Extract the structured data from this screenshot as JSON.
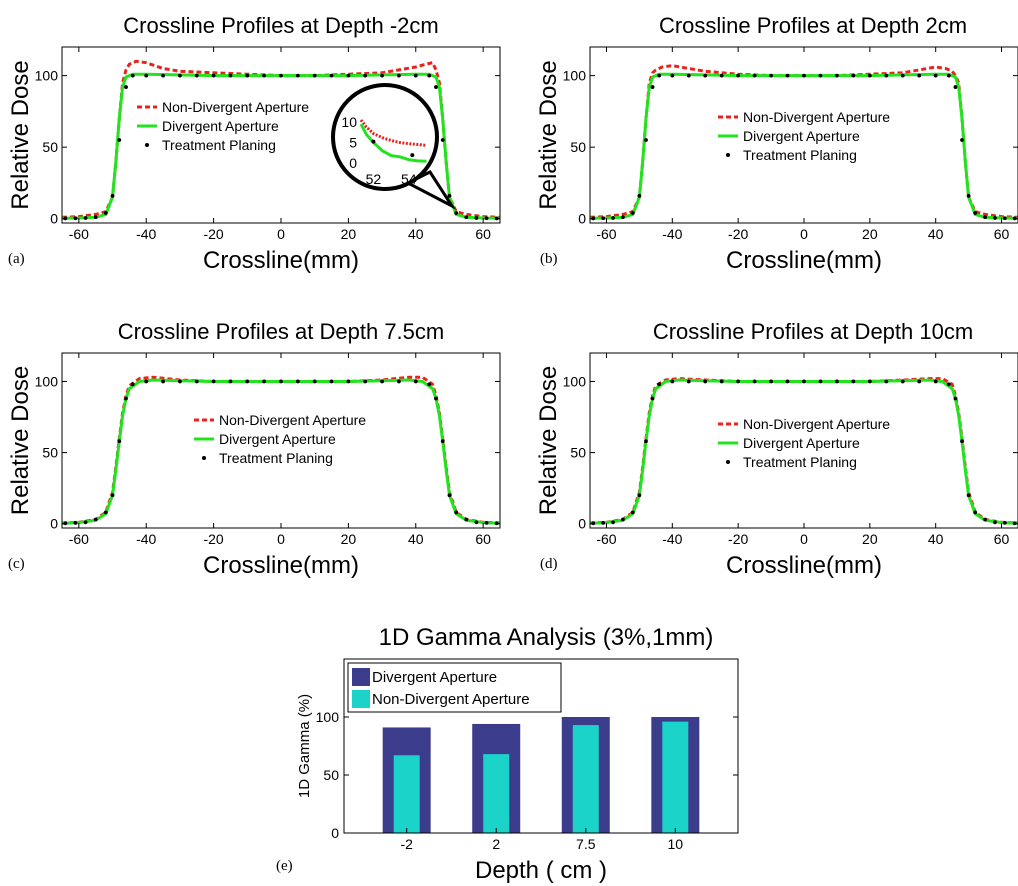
{
  "figure": {
    "panel_labels": [
      "(a)",
      "(b)",
      "(c)",
      "(d)",
      "(e)"
    ]
  },
  "colors": {
    "non_divergent": "#e8231e",
    "divergent": "#22e41e",
    "treatment": "#000000",
    "bar_divergent": "#3c3c8c",
    "bar_non_divergent": "#1cd3c9"
  },
  "chart_data": [
    {
      "type": "line",
      "panel": "(a)",
      "title": "Crossline Profiles at Depth -2cm",
      "xlabel": "Crossline(mm)",
      "ylabel": "Relative Dose",
      "xlim": [
        -65,
        65
      ],
      "ylim": [
        -3,
        120
      ],
      "xticks": [
        -60,
        -40,
        -20,
        0,
        20,
        40,
        60
      ],
      "yticks": [
        0,
        50,
        100
      ],
      "legend_position": "upper-left",
      "inset": {
        "xticks": [
          52,
          54
        ],
        "yticks": [
          0,
          5,
          10
        ],
        "xlim": [
          51.3,
          55.2
        ],
        "ylim": [
          -1,
          11
        ],
        "non_divergent": {
          "x": [
            51.3,
            51.6,
            52,
            52.5,
            53,
            53.5,
            54,
            54.5,
            55
          ],
          "y": [
            10.5,
            8.8,
            7.2,
            6.2,
            5.5,
            5.0,
            4.7,
            4.5,
            4.3
          ]
        },
        "divergent": {
          "x": [
            51.3,
            51.6,
            52,
            52.5,
            53,
            53.5,
            54,
            54.5,
            55
          ],
          "y": [
            9.5,
            7.0,
            5.0,
            3.0,
            1.8,
            1.5,
            0.8,
            0.5,
            0.4
          ]
        },
        "treatment": {
          "x": [
            52,
            54.2
          ],
          "y": [
            5.2,
            1.9
          ]
        }
      },
      "series": [
        {
          "name": "Non-Divergent Aperture",
          "style": "dashed",
          "x": [
            -65,
            -60,
            -55,
            -52,
            -50,
            -49,
            -48,
            -47,
            -46,
            -45,
            -43,
            -40,
            -35,
            -30,
            -20,
            -10,
            0,
            10,
            20,
            30,
            35,
            40,
            43,
            45,
            46,
            47,
            48,
            49,
            50,
            52,
            55,
            60,
            65
          ],
          "y": [
            1,
            1.5,
            3,
            5,
            15,
            40,
            70,
            95,
            104,
            108,
            110,
            109,
            105,
            103,
            102,
            101,
            100,
            100,
            101,
            102,
            104,
            106,
            108,
            109,
            104,
            95,
            70,
            40,
            15,
            5,
            3,
            1.5,
            1
          ]
        },
        {
          "name": "Divergent Aperture",
          "style": "solid",
          "x": [
            -65,
            -60,
            -55,
            -52,
            -50,
            -49,
            -48,
            -47,
            -46,
            -44,
            -40,
            -30,
            -20,
            -10,
            0,
            10,
            20,
            30,
            40,
            44,
            46,
            47,
            48,
            49,
            50,
            52,
            55,
            60,
            65
          ],
          "y": [
            0.3,
            0.5,
            1,
            3,
            15,
            40,
            70,
            92,
            99,
            101,
            101,
            100.5,
            100,
            100,
            100,
            100,
            100,
            100.5,
            101,
            101,
            99,
            92,
            70,
            40,
            15,
            3,
            1,
            0.5,
            0.3
          ]
        },
        {
          "name": "Treatment Planing",
          "style": "dots",
          "x": [
            -64,
            -61,
            -58,
            -55,
            -52,
            -50,
            -48,
            -46,
            -44,
            -40,
            -35,
            -30,
            -25,
            -20,
            -15,
            -10,
            -5,
            0,
            5,
            10,
            15,
            20,
            25,
            30,
            35,
            40,
            44,
            46,
            48,
            50,
            52,
            55,
            58,
            61,
            64
          ],
          "y": [
            0.2,
            0.3,
            0.5,
            1,
            4,
            16,
            55,
            92,
            100,
            100,
            100,
            100,
            100,
            100,
            100,
            100,
            100,
            100,
            100,
            100,
            100,
            100,
            100,
            100,
            100,
            100,
            100,
            92,
            55,
            16,
            4,
            1,
            0.5,
            0.3,
            0.2
          ]
        }
      ]
    },
    {
      "type": "line",
      "panel": "(b)",
      "title": "Crossline Profiles at Depth 2cm",
      "xlabel": "Crossline(mm)",
      "ylabel": "Relative Dose",
      "xlim": [
        -65,
        65
      ],
      "ylim": [
        -3,
        120
      ],
      "xticks": [
        -60,
        -40,
        -20,
        0,
        20,
        40,
        60
      ],
      "yticks": [
        0,
        50,
        100
      ],
      "legend_position": "center",
      "series": [
        {
          "name": "Non-Divergent Aperture",
          "style": "dashed",
          "x": [
            -65,
            -60,
            -55,
            -52,
            -50,
            -49,
            -48,
            -47,
            -46,
            -45,
            -43,
            -40,
            -35,
            -30,
            -20,
            -10,
            0,
            10,
            20,
            30,
            35,
            40,
            43,
            45,
            46,
            47,
            48,
            49,
            50,
            52,
            55,
            60,
            65
          ],
          "y": [
            1,
            1.5,
            3,
            5,
            15,
            40,
            70,
            95,
            102,
            104,
            106,
            107,
            105,
            103,
            101,
            100,
            100,
            100,
            101,
            102,
            104,
            106,
            105,
            103,
            100,
            95,
            70,
            40,
            15,
            5,
            3,
            1.5,
            1
          ]
        },
        {
          "name": "Divergent Aperture",
          "style": "solid",
          "x": [
            -65,
            -60,
            -55,
            -52,
            -50,
            -49,
            -48,
            -47,
            -46,
            -44,
            -40,
            -30,
            -20,
            -10,
            0,
            10,
            20,
            30,
            40,
            44,
            46,
            47,
            48,
            49,
            50,
            52,
            55,
            60,
            65
          ],
          "y": [
            0.3,
            0.5,
            1,
            3,
            15,
            40,
            70,
            92,
            99,
            101,
            101,
            100.5,
            100,
            100,
            100,
            100,
            100,
            100.5,
            101,
            101,
            99,
            92,
            70,
            40,
            15,
            3,
            1,
            0.5,
            0.3
          ]
        },
        {
          "name": "Treatment Planing",
          "style": "dots",
          "x": [
            -64,
            -61,
            -58,
            -55,
            -52,
            -50,
            -48,
            -46,
            -44,
            -40,
            -35,
            -30,
            -25,
            -20,
            -15,
            -10,
            -5,
            0,
            5,
            10,
            15,
            20,
            25,
            30,
            35,
            40,
            44,
            46,
            48,
            50,
            52,
            55,
            58,
            61,
            64
          ],
          "y": [
            0.2,
            0.3,
            0.5,
            1,
            4,
            16,
            55,
            92,
            100,
            100,
            100,
            100,
            100,
            100,
            100,
            100,
            100,
            100,
            100,
            100,
            100,
            100,
            100,
            100,
            100,
            100,
            100,
            92,
            55,
            16,
            4,
            1,
            0.5,
            0.3,
            0.2
          ]
        }
      ]
    },
    {
      "type": "line",
      "panel": "(c)",
      "title": "Crossline Profiles at Depth 7.5cm",
      "xlabel": "Crossline(mm)",
      "ylabel": "Relative Dose",
      "xlim": [
        -65,
        65
      ],
      "ylim": [
        -3,
        120
      ],
      "xticks": [
        -60,
        -40,
        -20,
        0,
        20,
        40,
        60
      ],
      "yticks": [
        0,
        50,
        100
      ],
      "legend_position": "center",
      "series": [
        {
          "name": "Non-Divergent Aperture",
          "style": "dashed",
          "x": [
            -65,
            -60,
            -55,
            -52,
            -50,
            -49,
            -48,
            -47,
            -46,
            -45,
            -42,
            -38,
            -30,
            -20,
            -10,
            0,
            10,
            20,
            30,
            38,
            42,
            45,
            46,
            47,
            48,
            49,
            50,
            52,
            55,
            60,
            65
          ],
          "y": [
            0.5,
            1,
            3,
            8,
            22,
            40,
            60,
            78,
            90,
            97,
            102,
            103,
            101,
            100,
            100,
            100,
            100,
            100,
            101,
            103,
            103,
            98,
            90,
            78,
            60,
            40,
            22,
            8,
            3,
            1,
            0.5
          ]
        },
        {
          "name": "Divergent Aperture",
          "style": "solid",
          "x": [
            -65,
            -60,
            -55,
            -52,
            -50,
            -49,
            -48,
            -47,
            -46,
            -45,
            -42,
            -38,
            -30,
            -20,
            -10,
            0,
            10,
            20,
            30,
            38,
            42,
            45,
            46,
            47,
            48,
            49,
            50,
            52,
            55,
            60,
            65
          ],
          "y": [
            0.3,
            0.8,
            2.5,
            7,
            20,
            38,
            58,
            76,
            88,
            95,
            100,
            101,
            100.5,
            100,
            100,
            100,
            100,
            100,
            100.5,
            101,
            100,
            95,
            88,
            76,
            58,
            38,
            20,
            7,
            2.5,
            0.8,
            0.3
          ]
        },
        {
          "name": "Treatment Planing",
          "style": "dots",
          "x": [
            -64,
            -61,
            -58,
            -55,
            -52,
            -50,
            -48,
            -46,
            -44,
            -40,
            -35,
            -30,
            -25,
            -20,
            -15,
            -10,
            -5,
            0,
            5,
            10,
            15,
            20,
            25,
            30,
            35,
            40,
            44,
            46,
            48,
            50,
            52,
            55,
            58,
            61,
            64
          ],
          "y": [
            0.3,
            0.6,
            1,
            3,
            8,
            20,
            58,
            88,
            98,
            100,
            100,
            100,
            100,
            100,
            100,
            100,
            100,
            100,
            100,
            100,
            100,
            100,
            100,
            100,
            100,
            100,
            98,
            88,
            58,
            20,
            8,
            3,
            1,
            0.6,
            0.3
          ]
        }
      ]
    },
    {
      "type": "line",
      "panel": "(d)",
      "title": "Crossline Profiles at Depth 10cm",
      "xlabel": "Crossline(mm)",
      "ylabel": "Relative Dose",
      "xlim": [
        -65,
        65
      ],
      "ylim": [
        -3,
        120
      ],
      "xticks": [
        -60,
        -40,
        -20,
        0,
        20,
        40,
        60
      ],
      "yticks": [
        0,
        50,
        100
      ],
      "legend_position": "center",
      "series": [
        {
          "name": "Non-Divergent Aperture",
          "style": "dashed",
          "x": [
            -65,
            -60,
            -55,
            -52,
            -50,
            -49,
            -48,
            -47,
            -46,
            -45,
            -42,
            -38,
            -30,
            -20,
            -10,
            0,
            10,
            20,
            30,
            38,
            42,
            45,
            46,
            47,
            48,
            49,
            50,
            52,
            55,
            60,
            65
          ],
          "y": [
            0.5,
            1,
            3,
            8,
            22,
            40,
            60,
            78,
            90,
            97,
            101,
            102,
            101,
            100,
            100,
            100,
            100,
            100,
            101,
            102,
            102,
            98,
            90,
            78,
            60,
            40,
            22,
            8,
            3,
            1,
            0.5
          ]
        },
        {
          "name": "Divergent Aperture",
          "style": "solid",
          "x": [
            -65,
            -60,
            -55,
            -52,
            -50,
            -49,
            -48,
            -47,
            -46,
            -45,
            -42,
            -38,
            -30,
            -20,
            -10,
            0,
            10,
            20,
            30,
            38,
            42,
            45,
            46,
            47,
            48,
            49,
            50,
            52,
            55,
            60,
            65
          ],
          "y": [
            0.3,
            0.8,
            2.5,
            7,
            20,
            38,
            58,
            76,
            88,
            95,
            100,
            101,
            100.5,
            100,
            100,
            100,
            100,
            100,
            100.5,
            101,
            100,
            95,
            88,
            76,
            58,
            38,
            20,
            7,
            2.5,
            0.8,
            0.3
          ]
        },
        {
          "name": "Treatment Planing",
          "style": "dots",
          "x": [
            -64,
            -61,
            -58,
            -55,
            -52,
            -50,
            -48,
            -46,
            -44,
            -40,
            -35,
            -30,
            -25,
            -20,
            -15,
            -10,
            -5,
            0,
            5,
            10,
            15,
            20,
            25,
            30,
            35,
            40,
            44,
            46,
            48,
            50,
            52,
            55,
            58,
            61,
            64
          ],
          "y": [
            0.3,
            0.6,
            1,
            3,
            8,
            20,
            58,
            88,
            98,
            100,
            100,
            100,
            100,
            100,
            100,
            100,
            100,
            100,
            100,
            100,
            100,
            100,
            100,
            100,
            100,
            100,
            98,
            88,
            58,
            20,
            8,
            3,
            1,
            0.6,
            0.3
          ]
        }
      ]
    },
    {
      "type": "bar",
      "panel": "(e)",
      "title": "1D Gamma Analysis (3%,1mm)",
      "xlabel": "Depth ( cm )",
      "ylabel": "1D Gamma (%)",
      "categories": [
        "-2",
        "2",
        "7.5",
        "10"
      ],
      "ylim": [
        0,
        150
      ],
      "yticks": [
        0,
        50,
        100
      ],
      "legend_position": "top-left",
      "series": [
        {
          "name": "Divergent Aperture",
          "values": [
            91,
            94,
            100,
            100
          ]
        },
        {
          "name": "Non-Divergent Aperture",
          "values": [
            67,
            68,
            93,
            96
          ]
        }
      ]
    }
  ]
}
